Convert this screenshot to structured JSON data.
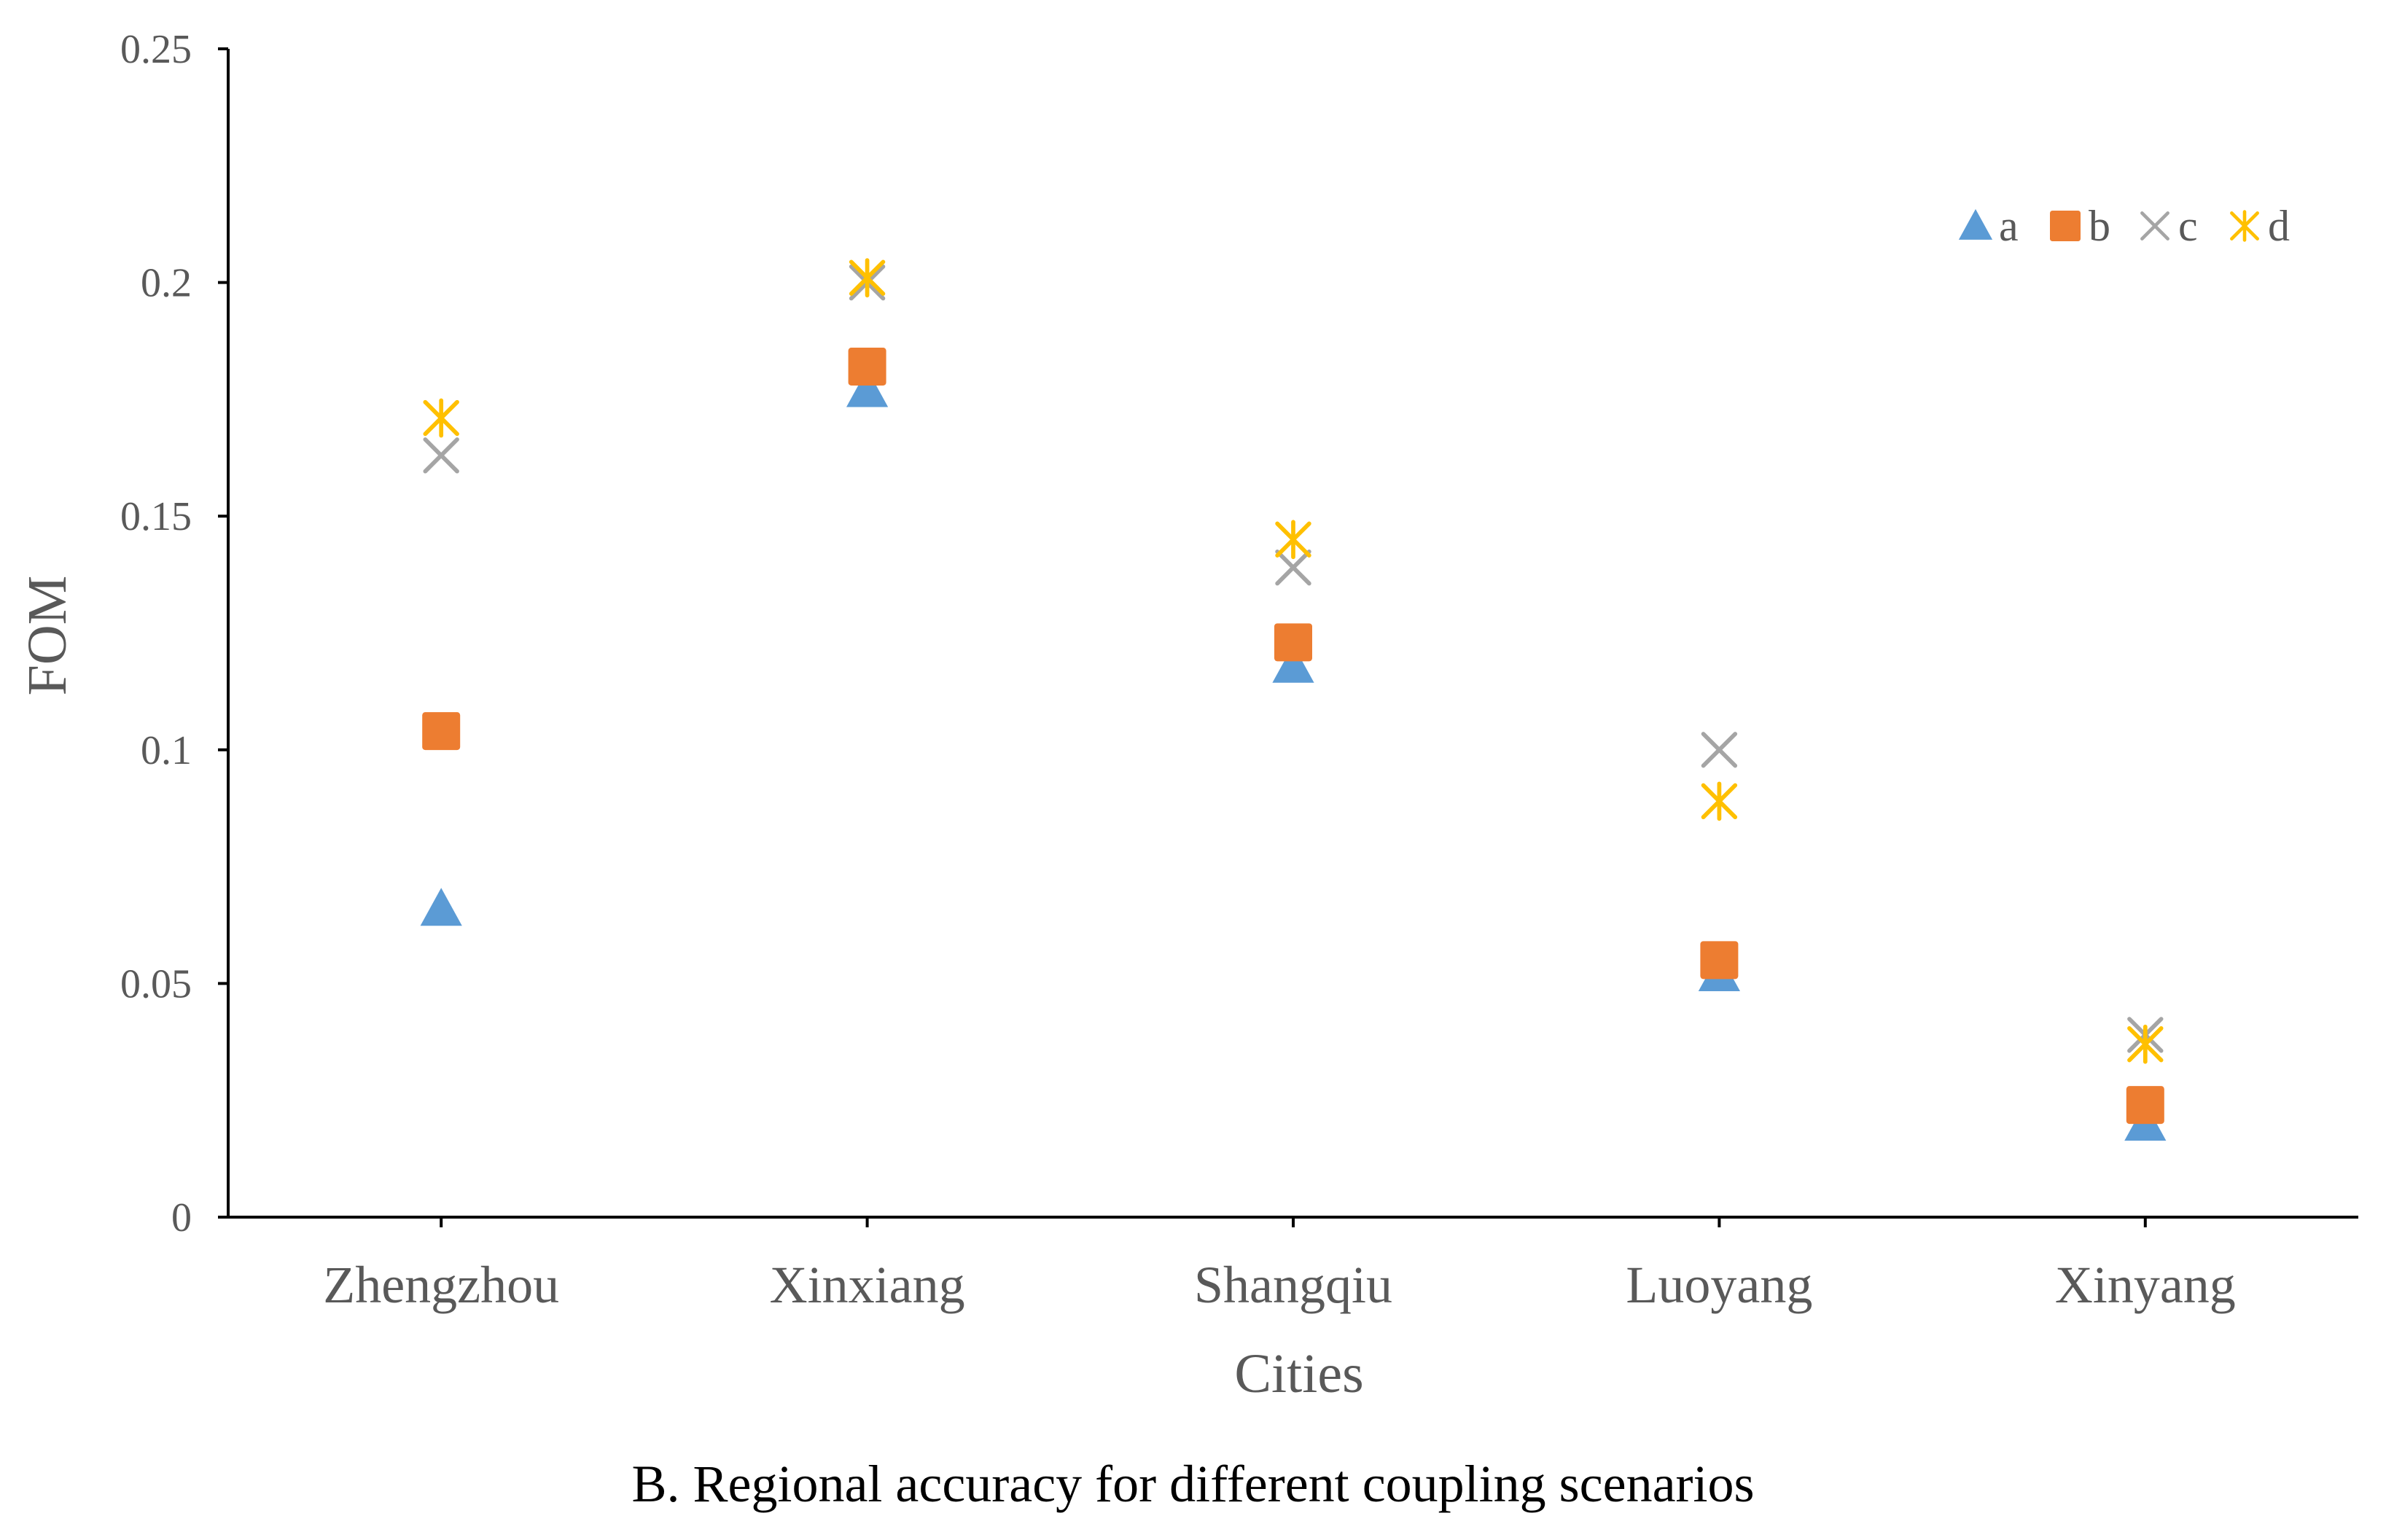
{
  "caption": "B. Regional accuracy for different coupling scenarios",
  "chart_data": {
    "type": "scatter",
    "title": "",
    "xlabel": "Cities",
    "ylabel": "FOM",
    "categories": [
      "Zhengzhou",
      "Xinxiang",
      "Shangqiu",
      "Luoyang",
      "Xinyang"
    ],
    "ylim": [
      0,
      0.25
    ],
    "yticks": [
      0,
      0.05,
      0.1,
      0.15,
      0.2,
      0.25
    ],
    "ytick_labels": [
      "0",
      "0.05",
      "0.1",
      "0.15",
      "0.2",
      "0.25"
    ],
    "legend_position": "top-right",
    "series": [
      {
        "name": "a",
        "marker": "triangle",
        "color": "#5B9BD5",
        "values": [
          0.066,
          0.177,
          0.118,
          0.052,
          0.02
        ]
      },
      {
        "name": "b",
        "marker": "square",
        "color": "#ED7D31",
        "values": [
          0.104,
          0.182,
          0.123,
          0.055,
          0.024
        ]
      },
      {
        "name": "c",
        "marker": "x",
        "color": "#A5A5A5",
        "values": [
          0.163,
          0.2,
          0.139,
          0.1,
          0.039
        ]
      },
      {
        "name": "d",
        "marker": "asterisk",
        "color": "#FFC000",
        "values": [
          0.171,
          0.201,
          0.145,
          0.089,
          0.037
        ]
      }
    ]
  }
}
